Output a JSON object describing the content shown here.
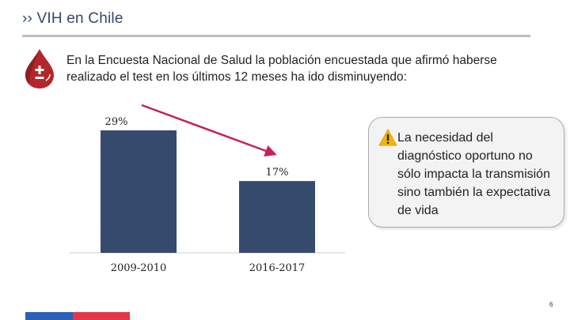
{
  "header": {
    "title": "›› VIH en Chile"
  },
  "intro": {
    "text": "En la Encuesta Nacional de Salud la población encuestada que afirmó haberse realizado el test en los últimos 12 meses ha ido disminuyendo:"
  },
  "icons": {
    "blood_drop": "blood-drop-plus-minus-icon",
    "warning": "warning-triangle-icon"
  },
  "colors": {
    "bar": "#364a6e",
    "trend_arrow": "#c82058",
    "title": "#35476a",
    "callout_bg": "#f3f3f3"
  },
  "chart_data": {
    "type": "bar",
    "title": "",
    "xlabel": "",
    "ylabel": "",
    "categories": [
      "2009-2010",
      "2016-2017"
    ],
    "values": [
      29,
      17
    ],
    "data_labels": [
      "29%",
      "17%"
    ],
    "unit": "%",
    "ylim": [
      0,
      30
    ],
    "trend_arrow": {
      "from": "2009-2010",
      "to": "2016-2017",
      "direction": "down"
    }
  },
  "callout": {
    "text": "La necesidad del diagnóstico oportuno no sólo impacta la transmisión sino también la expectativa de vida"
  },
  "footer": {
    "page_number": "6"
  }
}
